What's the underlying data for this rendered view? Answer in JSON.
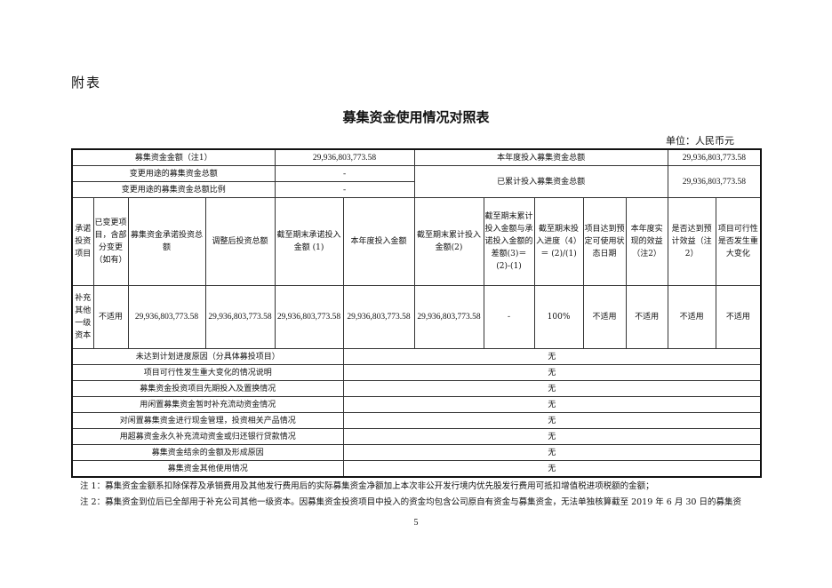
{
  "attachment": "附表",
  "title": "募集资金使用情况对照表",
  "unit": "单位：人民币元",
  "summary": {
    "raised_label": "募集资金金额（注1）",
    "raised_value": "29,936,803,773.58",
    "year_label": "本年度投入募集资金总额",
    "year_value": "29,936,803,773.58",
    "changed_label": "变更用途的募集资金总额",
    "changed_value": "-",
    "changed_ratio_label": "变更用途的募集资金总额比例",
    "changed_ratio_value": "-",
    "cumulative_label": "已累计投入募集资金总额",
    "cumulative_value": "29,936,803,773.58"
  },
  "headers": [
    "承诺投资项目",
    "已变更项目，含部分变更（如有）",
    "募集资金承诺投资总额",
    "调整后投资总额",
    "截至期末承诺投入金额 (1)",
    "本年度投入金额",
    "截至期末累计投入金额(2)",
    "截至期末累计投入金额与承诺投入金额的差额(3)＝(2)-(1)",
    "截至期末投入进度（4）＝ (2)/(1)",
    "项目达到预定可使用状态日期",
    "本年度实现的效益（注2）",
    "是否达到预计效益（注2）",
    "项目可行性是否发生重大变化"
  ],
  "row": [
    "补充其他一级资本",
    "不适用",
    "29,936,803,773.58",
    "29,936,803,773.58",
    "29,936,803,773.58",
    "29,936,803,773.58",
    "29,936,803,773.58",
    "-",
    "100%",
    "不适用",
    "不适用",
    "不适用",
    "不适用"
  ],
  "items": [
    {
      "label": "未达到计划进度原因（分具体募投项目）",
      "value": "无"
    },
    {
      "label": "项目可行性发生重大变化的情况说明",
      "value": "无"
    },
    {
      "label": "募集资金投资项目先期投入及置换情况",
      "value": "无"
    },
    {
      "label": "用闲置募集资金暂时补充流动资金情况",
      "value": "无"
    },
    {
      "label": "对闲置募集资金进行现金管理，投资相关产品情况",
      "value": "无"
    },
    {
      "label": "用超募资金永久补充流动资金或归还银行贷款情况",
      "value": "无"
    },
    {
      "label": "募集资金结余的金额及形成原因",
      "value": "无"
    },
    {
      "label": "募集资金其他使用情况",
      "value": "无"
    }
  ],
  "notes": [
    "注 1：募集资金金额系扣除保荐及承销费用及其他发行费用后的实际募集资金净额加上本次非公开发行境内优先股发行费用可抵扣增值税进项税额的金额；",
    "注 2：募集资金到位后已全部用于补充公司其他一级资本。因募集资金投资项目中投入的资金均包含公司原自有资金与募集资金，无法单独核算截至 2019 年 6 月 30 日的募集资"
  ],
  "page": "5"
}
